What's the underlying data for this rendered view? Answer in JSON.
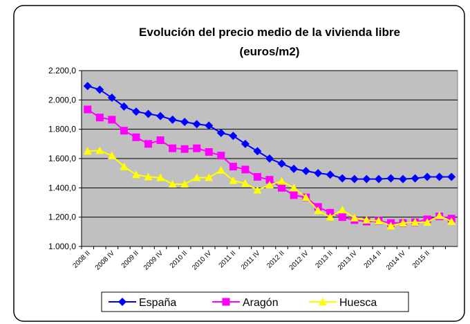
{
  "chart_data": {
    "type": "line",
    "title": [
      "Evolución del precio medio de la vivienda libre",
      "(euros/m2)"
    ],
    "categories": [
      "2008 II",
      null,
      "2008 IV",
      null,
      "2009 II",
      null,
      "2009 IV",
      null,
      "2010 II",
      null,
      "2010 IV",
      null,
      "2011 II",
      null,
      "2011 IV",
      null,
      "2012 II",
      null,
      "2012 IV",
      null,
      "2013 II",
      null,
      "2013 IV",
      null,
      "2014 II",
      null,
      "2014 IV",
      null,
      "2015 II",
      null,
      null
    ],
    "series": [
      {
        "name": "España",
        "color": "#0000ff",
        "marker": "diamond",
        "values": [
          2095,
          2070,
          2015,
          1955,
          1920,
          1905,
          1890,
          1865,
          1850,
          1835,
          1825,
          1775,
          1755,
          1700,
          1650,
          1600,
          1565,
          1530,
          1515,
          1500,
          1490,
          1465,
          1460,
          1460,
          1460,
          1465,
          1460,
          1465,
          1475,
          1475,
          1475
        ]
      },
      {
        "name": "Aragón",
        "color": "#ff00ff",
        "marker": "square",
        "values": [
          1935,
          1880,
          1865,
          1790,
          1745,
          1700,
          1725,
          1670,
          1665,
          1670,
          1645,
          1620,
          1545,
          1525,
          1475,
          1455,
          1400,
          1350,
          1335,
          1270,
          1230,
          1200,
          1180,
          1170,
          1175,
          1160,
          1160,
          1165,
          1185,
          1205,
          1190
        ]
      },
      {
        "name": "Huesca",
        "color": "#ffff00",
        "marker": "triangle",
        "values": [
          1650,
          1655,
          1620,
          1545,
          1490,
          1475,
          1470,
          1425,
          1425,
          1470,
          1470,
          1520,
          1450,
          1430,
          1385,
          1420,
          1445,
          1400,
          1335,
          1245,
          1200,
          1250,
          1195,
          1180,
          1175,
          1140,
          1160,
          1165,
          1165,
          1210,
          1170
        ]
      }
    ],
    "ylim": [
      1000,
      2200
    ],
    "yticks": [
      {
        "value": 1000,
        "label": "1.000,0"
      },
      {
        "value": 1200,
        "label": "1.200,0"
      },
      {
        "value": 1400,
        "label": "1.400,0"
      },
      {
        "value": 1600,
        "label": "1.600,0"
      },
      {
        "value": 1800,
        "label": "1.800,0"
      },
      {
        "value": 2000,
        "label": "2.000,0"
      },
      {
        "value": 2200,
        "label": "2.200,0"
      }
    ],
    "grid": true,
    "legend": "bottom",
    "plot_background": "#c0c0c0"
  }
}
